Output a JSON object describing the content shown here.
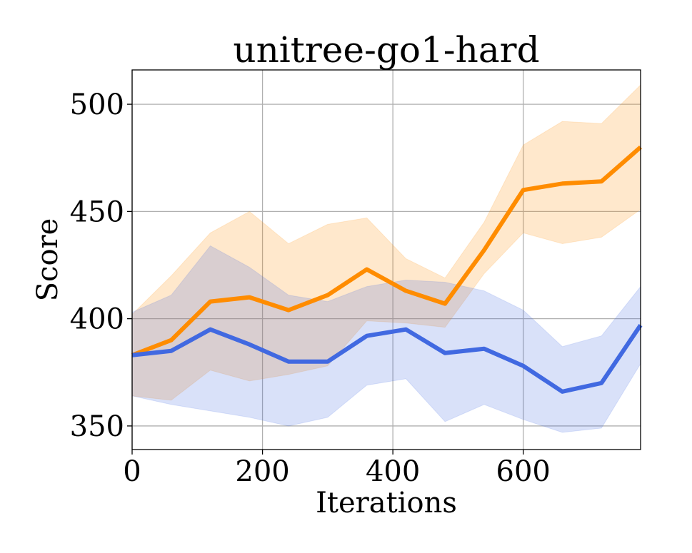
{
  "chart_data": {
    "type": "line",
    "title": "unitree-go1-hard",
    "xlabel": "Iterations",
    "ylabel": "Score",
    "xlim": [
      0,
      780
    ],
    "ylim": [
      339,
      516
    ],
    "xticks": [
      0,
      200,
      400,
      600
    ],
    "yticks": [
      350,
      400,
      450,
      500
    ],
    "grid": true,
    "x": [
      0,
      60,
      120,
      180,
      240,
      300,
      360,
      420,
      480,
      540,
      600,
      660,
      720,
      780
    ],
    "series": [
      {
        "color": "#ff8c00",
        "values": [
          383,
          390,
          408,
          410,
          404,
          411,
          423,
          413,
          407,
          432,
          460,
          463,
          464,
          480
        ],
        "upper": [
          402,
          420,
          440,
          450,
          435,
          444,
          447,
          428,
          419,
          445,
          481,
          492,
          491,
          509
        ],
        "lower": [
          364,
          362,
          376,
          371,
          374,
          378,
          399,
          398,
          396,
          421,
          440,
          435,
          438,
          451
        ]
      },
      {
        "color": "#4169e1",
        "values": [
          383,
          385,
          395,
          388,
          380,
          380,
          392,
          395,
          384,
          386,
          378,
          366,
          370,
          397
        ],
        "upper": [
          403,
          411,
          434,
          424,
          411,
          408,
          415,
          418,
          417,
          413,
          404,
          387,
          392,
          415
        ],
        "lower": [
          364,
          360,
          357,
          354,
          350,
          354,
          369,
          372,
          352,
          360,
          353,
          347,
          349,
          379
        ]
      }
    ]
  }
}
